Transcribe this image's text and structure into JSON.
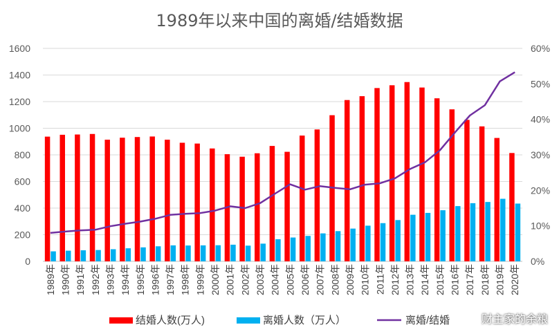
{
  "chart_data": {
    "type": "bar+line",
    "title": "1989年以来中国的离婚/结婚数据",
    "categories": [
      "1989年",
      "1990年",
      "1991年",
      "1992年",
      "1993年",
      "1994年",
      "1995年",
      "1996年",
      "1997年",
      "1998年",
      "1999年",
      "2000年",
      "2001年",
      "2002年",
      "2003年",
      "2004年",
      "2005年",
      "2006年",
      "2007年",
      "2008年",
      "2009年",
      "2010年",
      "2011年",
      "2012年",
      "2013年",
      "2014年",
      "2015年",
      "2016年",
      "2017年",
      "2018年",
      "2019年",
      "2020年"
    ],
    "series": [
      {
        "name": "结婚人数(万人)",
        "type": "bar",
        "axis": "left",
        "color": "#ff0000",
        "values": [
          937,
          951,
          953,
          957,
          914,
          929,
          934,
          938,
          914,
          891,
          885,
          848,
          805,
          786,
          812,
          867,
          823,
          945,
          991,
          1098,
          1212,
          1241,
          1302,
          1323,
          1347,
          1306,
          1225,
          1142,
          1063,
          1014,
          927,
          814
        ]
      },
      {
        "name": "离婚人数（万人）",
        "type": "bar",
        "axis": "left",
        "color": "#00b0f0",
        "values": [
          75,
          80,
          83,
          85,
          91,
          98,
          105,
          113,
          120,
          119,
          120,
          121,
          125,
          118,
          133,
          166,
          179,
          191,
          210,
          227,
          246,
          268,
          287,
          310,
          350,
          364,
          384,
          415,
          437,
          446,
          470,
          434
        ]
      },
      {
        "name": "离婚/结婚",
        "type": "line",
        "axis": "right",
        "color": "#7030a0",
        "values": [
          0.08,
          0.084,
          0.087,
          0.089,
          0.099,
          0.106,
          0.112,
          0.12,
          0.131,
          0.134,
          0.136,
          0.143,
          0.155,
          0.15,
          0.164,
          0.191,
          0.217,
          0.202,
          0.212,
          0.207,
          0.203,
          0.216,
          0.22,
          0.234,
          0.26,
          0.279,
          0.313,
          0.363,
          0.411,
          0.44,
          0.507,
          0.533
        ]
      }
    ],
    "y_left": {
      "min": 0,
      "max": 1600,
      "step": 200,
      "ticks": [
        "0",
        "200",
        "400",
        "600",
        "800",
        "1000",
        "1200",
        "1400",
        "1600"
      ]
    },
    "y_right": {
      "min": 0,
      "max": 0.6,
      "ticks": [
        "0%",
        "10%",
        "20%",
        "30%",
        "40%",
        "50%",
        "60%"
      ]
    },
    "grid": true,
    "legend": "bottom"
  },
  "watermark": "财主家的余粮"
}
